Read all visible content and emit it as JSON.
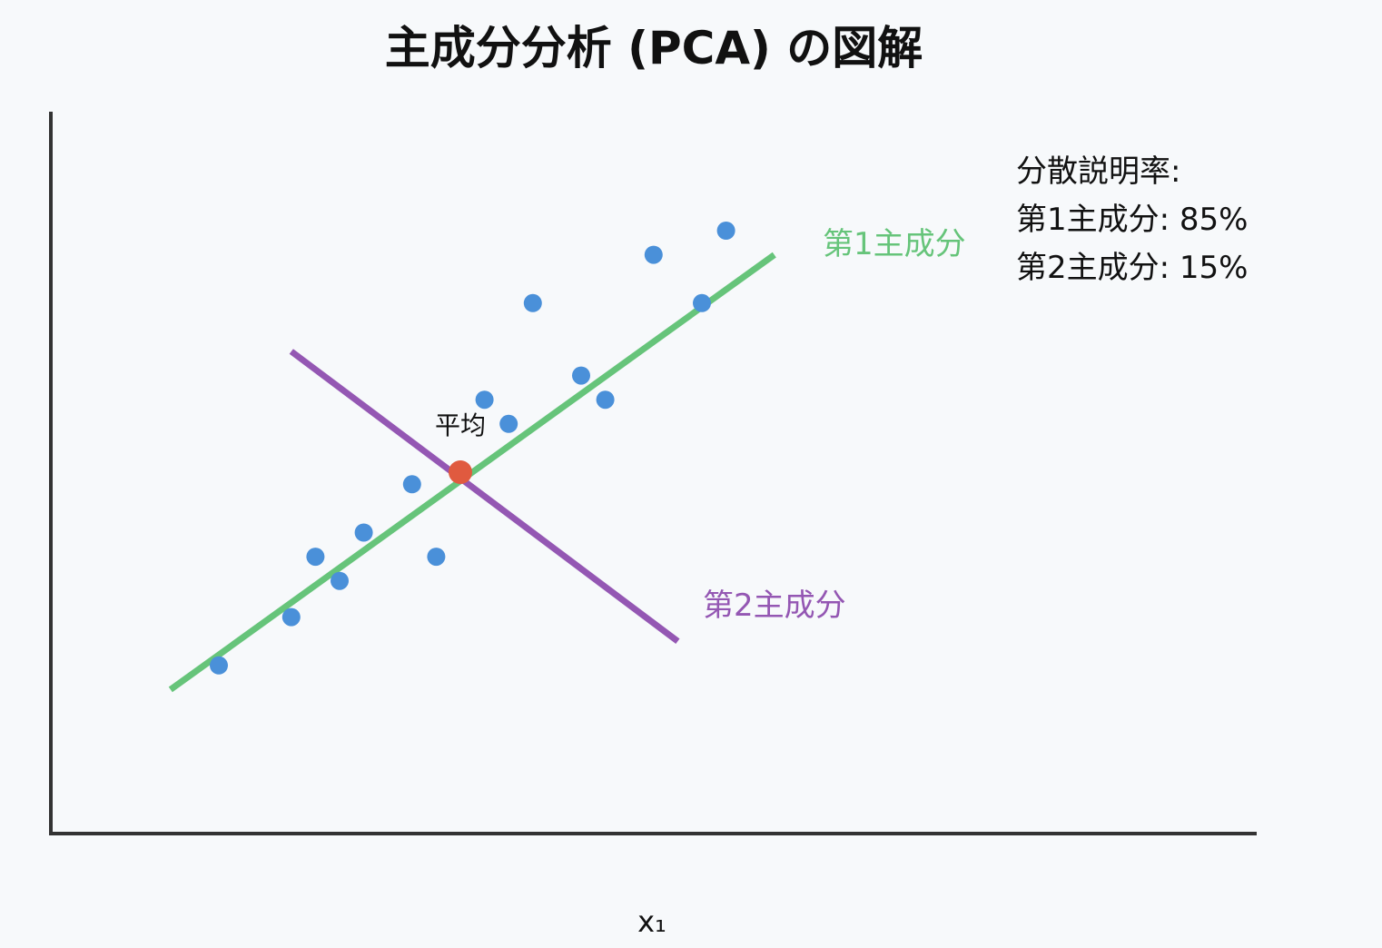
{
  "title": "主成分分析 (PCA) の図解",
  "xlabel": "x₁",
  "mean_label": "平均",
  "variance": {
    "heading": "分散説明率:",
    "pc1": "第1主成分: 85%",
    "pc2": "第2主成分: 15%"
  },
  "colors": {
    "points": "#4a90d9",
    "mean": "#e05a3f",
    "pc1": "#66c47a",
    "pc2": "#9457b3",
    "axis": "#333333"
  },
  "diagram": {
    "points": [
      {
        "x": 1.0,
        "y": 1.4
      },
      {
        "x": 1.6,
        "y": 1.8
      },
      {
        "x": 1.8,
        "y": 2.3
      },
      {
        "x": 2.0,
        "y": 2.1
      },
      {
        "x": 2.2,
        "y": 2.5
      },
      {
        "x": 2.6,
        "y": 2.9
      },
      {
        "x": 2.8,
        "y": 2.3
      },
      {
        "x": 3.2,
        "y": 3.6
      },
      {
        "x": 3.4,
        "y": 3.4
      },
      {
        "x": 3.6,
        "y": 4.4
      },
      {
        "x": 4.0,
        "y": 3.8
      },
      {
        "x": 4.2,
        "y": 3.6
      },
      {
        "x": 4.6,
        "y": 4.8
      },
      {
        "x": 5.0,
        "y": 4.4
      },
      {
        "x": 5.2,
        "y": 5.0
      }
    ],
    "mean": {
      "x": 3.0,
      "y": 3.0
    },
    "pc1": {
      "label": "第1主成分",
      "from": {
        "x": 0.6,
        "y": 1.2
      },
      "to": {
        "x": 5.6,
        "y": 4.8
      }
    },
    "pc2": {
      "label": "第2主成分",
      "from": {
        "x": 1.6,
        "y": 4.0
      },
      "to": {
        "x": 4.8,
        "y": 1.6
      }
    }
  }
}
